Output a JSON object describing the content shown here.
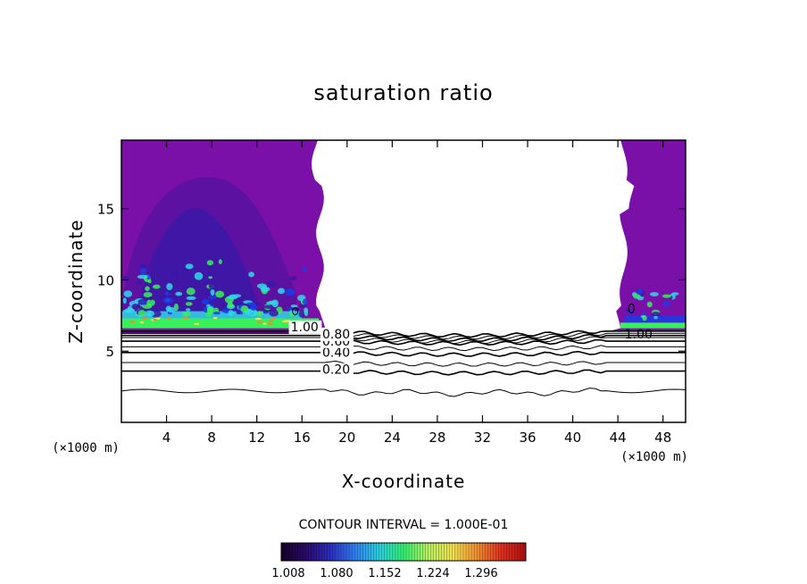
{
  "chart_data": {
    "type": "contour",
    "title": "saturation ratio",
    "xlabel": "X-coordinate",
    "ylabel": "Z-coordinate",
    "x_unit_left": "(×1000 m)",
    "x_unit_right": "(×1000 m)",
    "xlim": [
      0,
      50
    ],
    "ylim": [
      0,
      19.8
    ],
    "x_ticks": [
      4,
      8,
      12,
      16,
      20,
      24,
      28,
      32,
      36,
      40,
      44,
      48
    ],
    "y_ticks": [
      5,
      10,
      15
    ],
    "contour_interval_text": "CONTOUR INTERVAL = 1.000E-01",
    "contour_levels": [
      0.1,
      0.2,
      0.3,
      0.4,
      0.5,
      0.6,
      0.7,
      0.8,
      0.9,
      1.0
    ],
    "contour_heights_km": [
      2.2,
      3.6,
      4.2,
      4.9,
      5.3,
      5.7,
      5.95,
      6.1,
      6.25,
      6.4
    ],
    "contour_labels": [
      {
        "text": "0.20",
        "x": 17.8,
        "y": 3.4
      },
      {
        "text": "0.40",
        "x": 17.8,
        "y": 4.6
      },
      {
        "text": "0.60",
        "x": 17.8,
        "y": 5.4
      },
      {
        "text": "0.80",
        "x": 17.8,
        "y": 5.9
      },
      {
        "text": "1.00",
        "x": 15.0,
        "y": 6.4
      },
      {
        "text": "1.00",
        "x": 44.6,
        "y": 5.9
      }
    ],
    "colorbar": {
      "tick_labels": [
        "1.008",
        "1.080",
        "1.152",
        "1.224",
        "1.296"
      ],
      "colors": [
        "#140028",
        "#2a0a6a",
        "#2c2cc0",
        "#2f7ef0",
        "#2ad0e0",
        "#30f070",
        "#b6f060",
        "#f0e050",
        "#f09030",
        "#e03020",
        "#b01010"
      ]
    },
    "fill_colors": {
      "supersaturated_base": "#7a10a8",
      "interior_dark": "#5a12a0",
      "interior_deep": "#3a18a8",
      "layer_green": "#38f05a",
      "layer_cyan": "#30d8e8",
      "layer_blue": "#1a3ce6",
      "spot_yellow": "#f0e64a",
      "spot_orange": "#f08a30"
    }
  }
}
